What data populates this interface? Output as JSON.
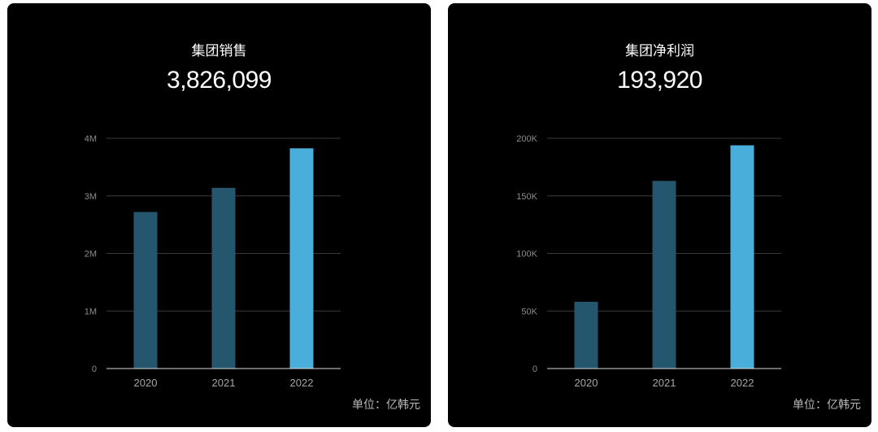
{
  "cards": [
    {
      "title": "集团销售",
      "total": "3,826,099",
      "unit": "单位：亿韩元"
    },
    {
      "title": "集团净利润",
      "total": "193,920",
      "unit": "单位：亿韩元"
    }
  ],
  "colors": {
    "card_background": "#000000",
    "bar_dim": "#24566e",
    "bar_highlight": "#4aaedb",
    "gridline": "#3a3a3a",
    "baseline": "#d9d9d9"
  },
  "chart_data": [
    {
      "type": "bar",
      "title": "集团销售",
      "categories": [
        "2020",
        "2021",
        "2022"
      ],
      "values": [
        2720000,
        3140000,
        3826099
      ],
      "ylim": [
        0,
        4000000
      ],
      "yticks": [
        0,
        1000000,
        2000000,
        3000000,
        4000000
      ],
      "ytick_labels": [
        "0",
        "1M",
        "2M",
        "3M",
        "4M"
      ],
      "highlight_index": 2,
      "grid": true,
      "legend": "none"
    },
    {
      "type": "bar",
      "title": "集团净利润",
      "categories": [
        "2020",
        "2021",
        "2022"
      ],
      "values": [
        58000,
        163000,
        193920
      ],
      "ylim": [
        0,
        200000
      ],
      "yticks": [
        0,
        50000,
        100000,
        150000,
        200000
      ],
      "ytick_labels": [
        "0",
        "50K",
        "100K",
        "150K",
        "200K"
      ],
      "highlight_index": 2,
      "grid": true,
      "legend": "none"
    }
  ]
}
